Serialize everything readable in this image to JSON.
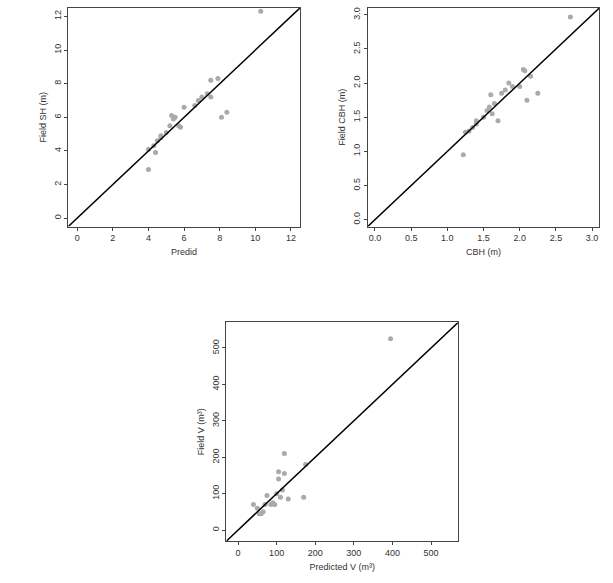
{
  "chart_data": [
    {
      "type": "scatter",
      "x_label": "Predid",
      "y_label": "Field SH (m)",
      "xlim": [
        -0.5,
        12.5
      ],
      "ylim": [
        -0.5,
        12.5
      ],
      "xticks": [
        0,
        2,
        4,
        6,
        8,
        10,
        12
      ],
      "yticks": [
        0,
        2,
        4,
        6,
        8,
        10,
        12
      ],
      "series": [
        {
          "type": "scatter",
          "marker": "circle",
          "color": "#aaaaaa",
          "x": [
            4.0,
            4.0,
            4.3,
            4.4,
            4.5,
            4.7,
            4.7,
            5.0,
            5.2,
            5.3,
            5.4,
            5.5,
            5.7,
            5.8,
            6.0,
            6.6,
            6.8,
            7.0,
            7.3,
            7.5,
            7.5,
            7.9,
            8.1,
            8.4,
            10.3
          ],
          "values": [
            4.1,
            2.9,
            4.3,
            3.9,
            4.6,
            4.9,
            4.8,
            5.1,
            5.5,
            6.1,
            5.9,
            6.0,
            5.5,
            5.4,
            6.6,
            6.7,
            7.0,
            7.2,
            7.4,
            7.2,
            8.2,
            8.3,
            6.0,
            6.3,
            12.3
          ]
        },
        {
          "type": "line",
          "line_style": "solid",
          "color": "#000000",
          "x": [
            -0.5,
            12.5
          ],
          "values": [
            -0.5,
            12.5
          ]
        }
      ]
    },
    {
      "type": "scatter",
      "x_label": "CBH (m)",
      "y_label": "Field CBH (m)",
      "xlim": [
        -0.1,
        3.1
      ],
      "ylim": [
        -0.1,
        3.1
      ],
      "xticks": [
        {
          "value": 0,
          "label": "0.0"
        },
        0.5,
        {
          "value": 1,
          "label": "1.0"
        },
        1.5,
        {
          "value": 2,
          "label": "2.0"
        },
        2.5,
        {
          "value": 3,
          "label": "3.0"
        }
      ],
      "yticks": [
        {
          "value": 0,
          "label": "0.0"
        },
        0.5,
        {
          "value": 1,
          "label": "1.0"
        },
        1.5,
        {
          "value": 2,
          "label": "2.0"
        },
        2.5,
        {
          "value": 3,
          "label": "3.0"
        }
      ],
      "series": [
        {
          "type": "scatter",
          "marker": "circle",
          "color": "#aaaaaa",
          "x": [
            1.22,
            1.25,
            1.3,
            1.35,
            1.4,
            1.4,
            1.5,
            1.55,
            1.58,
            1.6,
            1.62,
            1.65,
            1.7,
            1.75,
            1.8,
            1.85,
            1.9,
            2.0,
            2.05,
            2.07,
            2.1,
            2.15,
            2.25,
            2.7
          ],
          "values": [
            0.95,
            1.28,
            1.3,
            1.35,
            1.4,
            1.45,
            1.5,
            1.6,
            1.65,
            1.83,
            1.55,
            1.7,
            1.45,
            1.85,
            1.9,
            2.0,
            1.95,
            1.95,
            2.2,
            2.18,
            1.75,
            2.1,
            1.85,
            2.97
          ]
        },
        {
          "type": "line",
          "line_style": "solid",
          "color": "#000000",
          "x": [
            -0.1,
            3.1
          ],
          "values": [
            -0.1,
            3.1
          ]
        }
      ]
    },
    {
      "type": "scatter",
      "x_label": "Predicted V (m³)",
      "y_label": "Field V (m³)",
      "xlim": [
        -30,
        570
      ],
      "ylim": [
        -30,
        570
      ],
      "xticks": [
        0,
        100,
        200,
        300,
        400,
        500
      ],
      "yticks": [
        0,
        100,
        200,
        300,
        400,
        500
      ],
      "series": [
        {
          "type": "scatter",
          "marker": "circle",
          "color": "#aaaaaa",
          "x": [
            40,
            50,
            55,
            60,
            65,
            70,
            75,
            85,
            90,
            95,
            100,
            105,
            105,
            110,
            115,
            120,
            120,
            130,
            170,
            175,
            395
          ],
          "values": [
            70,
            60,
            45,
            45,
            50,
            70,
            95,
            70,
            75,
            70,
            100,
            140,
            160,
            90,
            110,
            155,
            210,
            85,
            90,
            180,
            525
          ]
        },
        {
          "type": "line",
          "line_style": "solid",
          "color": "#000000",
          "x": [
            -30,
            570
          ],
          "values": [
            -30,
            570
          ]
        }
      ]
    }
  ]
}
